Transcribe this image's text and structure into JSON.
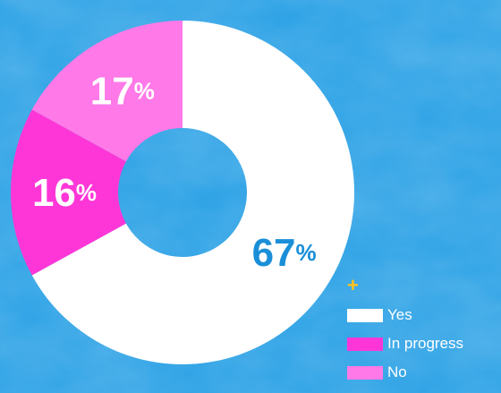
{
  "chart_data": {
    "type": "pie",
    "categories": [
      "Yes",
      "In progress",
      "No"
    ],
    "values": [
      67,
      16,
      17
    ],
    "labels": [
      "67",
      "16",
      "17"
    ],
    "unit": "%",
    "colors": [
      "#FFFFFF",
      "#FF36D7",
      "#FF79E8"
    ],
    "label_colors": [
      "#1A8FD8",
      "#FFFFFF",
      "#FFFFFF"
    ],
    "start_angle_deg": 0,
    "direction": "clockwise",
    "donut": true,
    "legend_position": "bottom-right",
    "legend_marker": "+"
  },
  "colors": {
    "background": "#2FA3E6",
    "accent": "#FFC21A"
  }
}
